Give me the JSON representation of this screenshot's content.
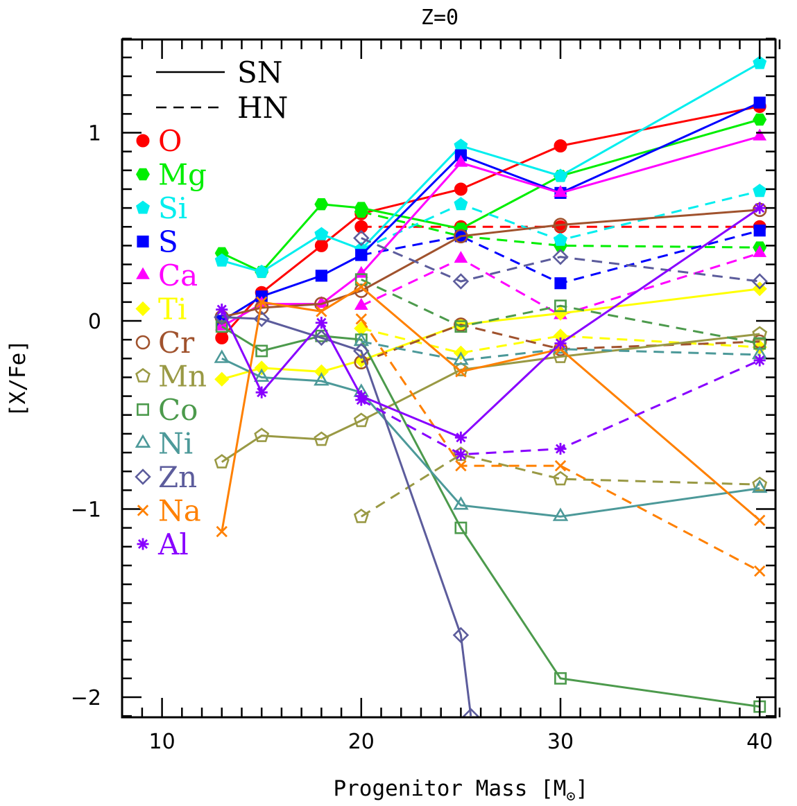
{
  "chart_data": {
    "type": "line",
    "title": "Z=0",
    "xlabel": "Progenitor Mass [M",
    "xlabel_sun": "⊙",
    "ylabel": "[X/Fe]",
    "xlim": [
      8,
      42
    ],
    "ylim": [
      -2.1,
      1.5
    ],
    "xticks": [
      10,
      20,
      30,
      40
    ],
    "xtick_labels": [
      "10",
      "20",
      "30",
      "40"
    ],
    "yticks": [
      1,
      0,
      -1,
      -2
    ],
    "ytick_labels": [
      "1",
      "0",
      "−1",
      "−2"
    ],
    "grid": false,
    "legend_position": "upper-left",
    "style_legend": [
      {
        "label": "SN",
        "dash": "solid"
      },
      {
        "label": "HN",
        "dash": "dashed"
      }
    ],
    "series": [
      {
        "name": "O",
        "color": "#ff0000",
        "marker": "circle-filled",
        "sn": {
          "x": [
            13,
            15,
            18,
            20,
            25,
            30,
            40
          ],
          "y": [
            -0.09,
            0.15,
            0.4,
            0.57,
            0.7,
            0.93,
            1.14
          ]
        },
        "hn": {
          "x": [
            20,
            25,
            30,
            40
          ],
          "y": [
            0.5,
            0.5,
            0.5,
            0.5
          ]
        }
      },
      {
        "name": "Mg",
        "color": "#00ee00",
        "marker": "hexagon-filled",
        "sn": {
          "x": [
            13,
            15,
            18,
            20,
            25,
            30,
            40
          ],
          "y": [
            0.36,
            0.26,
            0.62,
            0.6,
            0.49,
            0.77,
            1.07
          ]
        },
        "hn": {
          "x": [
            20,
            25,
            30,
            40
          ],
          "y": [
            0.58,
            0.45,
            0.4,
            0.39
          ]
        }
      },
      {
        "name": "Si",
        "color": "#00eeee",
        "marker": "pentagon-filled",
        "sn": {
          "x": [
            13,
            15,
            18,
            20,
            25,
            30,
            40
          ],
          "y": [
            0.32,
            0.26,
            0.46,
            0.38,
            0.93,
            0.77,
            1.37
          ]
        },
        "hn": {
          "x": [
            20,
            25,
            30,
            40
          ],
          "y": [
            0.38,
            0.62,
            0.43,
            0.69
          ]
        }
      },
      {
        "name": "S",
        "color": "#0000ff",
        "marker": "square-filled",
        "sn": {
          "x": [
            13,
            15,
            18,
            20,
            25,
            30,
            40
          ],
          "y": [
            0.0,
            0.13,
            0.24,
            0.35,
            0.88,
            0.68,
            1.16
          ]
        },
        "hn": {
          "x": [
            20,
            25,
            30,
            40
          ],
          "y": [
            0.35,
            0.45,
            0.2,
            0.48
          ]
        }
      },
      {
        "name": "Ca",
        "color": "#ff00ff",
        "marker": "triangle-filled",
        "sn": {
          "x": [
            13,
            15,
            18,
            20,
            25,
            30,
            40
          ],
          "y": [
            -0.03,
            0.09,
            0.09,
            0.25,
            0.84,
            0.68,
            0.98
          ]
        },
        "hn": {
          "x": [
            20,
            25,
            30,
            40
          ],
          "y": [
            0.08,
            0.33,
            0.03,
            0.36
          ]
        }
      },
      {
        "name": "Ti",
        "color": "#ffff00",
        "marker": "diamond-filled",
        "sn": {
          "x": [
            13,
            15,
            18,
            20,
            25,
            30,
            40
          ],
          "y": [
            -0.31,
            -0.25,
            -0.27,
            -0.21,
            -0.02,
            0.04,
            0.17
          ]
        },
        "hn": {
          "x": [
            20,
            25,
            30,
            40
          ],
          "y": [
            -0.04,
            -0.17,
            -0.08,
            -0.14
          ]
        }
      },
      {
        "name": "Cr",
        "color": "#a0522d",
        "marker": "circle-open",
        "sn": {
          "x": [
            13,
            15,
            18,
            20,
            25,
            30,
            40
          ],
          "y": [
            0.02,
            0.07,
            0.09,
            0.16,
            0.45,
            0.51,
            0.59
          ]
        },
        "hn": {
          "x": [
            20,
            25,
            30,
            40
          ],
          "y": [
            -0.22,
            -0.02,
            -0.15,
            -0.11
          ]
        }
      },
      {
        "name": "Mn",
        "color": "#999944",
        "marker": "pentagon-open",
        "sn": {
          "x": [
            13,
            15,
            18,
            20,
            25,
            30,
            40
          ],
          "y": [
            -0.75,
            -0.61,
            -0.63,
            -0.53,
            -0.26,
            -0.19,
            -0.07
          ]
        },
        "hn": {
          "x": [
            20,
            25,
            30,
            40
          ],
          "y": [
            -1.04,
            -0.71,
            -0.84,
            -0.87
          ]
        }
      },
      {
        "name": "Co",
        "color": "#4c9a4c",
        "marker": "square-open",
        "sn": {
          "x": [
            13,
            15,
            18,
            20,
            25,
            30,
            40
          ],
          "y": [
            -0.03,
            -0.16,
            -0.08,
            -0.1,
            -1.1,
            -1.9,
            -2.05
          ]
        },
        "hn": {
          "x": [
            20,
            25,
            30,
            40
          ],
          "y": [
            0.22,
            -0.03,
            0.08,
            -0.12
          ]
        }
      },
      {
        "name": "Ni",
        "color": "#4c9999",
        "marker": "triangle-open",
        "sn": {
          "x": [
            13,
            15,
            18,
            20,
            25,
            30,
            40
          ],
          "y": [
            -0.2,
            -0.3,
            -0.32,
            -0.38,
            -0.98,
            -1.04,
            -0.89
          ]
        },
        "hn": {
          "x": [
            20,
            25,
            30,
            40
          ],
          "y": [
            -0.11,
            -0.21,
            -0.15,
            -0.18
          ]
        }
      },
      {
        "name": "Zn",
        "color": "#5c5c9c",
        "marker": "diamond-open",
        "sn": {
          "x": [
            13,
            15,
            18,
            20,
            25,
            25.5
          ],
          "y": [
            0.02,
            0.01,
            -0.09,
            -0.16,
            -1.67,
            -2.1
          ]
        },
        "hn": {
          "x": [
            20,
            25,
            30,
            40
          ],
          "y": [
            0.44,
            0.21,
            0.34,
            0.21
          ]
        }
      },
      {
        "name": "Na",
        "color": "#ff8000",
        "marker": "x",
        "sn": {
          "x": [
            13,
            15,
            18,
            20,
            25,
            30,
            40
          ],
          "y": [
            -1.12,
            0.1,
            0.05,
            0.18,
            -0.27,
            -0.15,
            -1.06
          ]
        },
        "hn": {
          "x": [
            20,
            25,
            30,
            40
          ],
          "y": [
            0.01,
            -0.77,
            -0.77,
            -1.33
          ]
        }
      },
      {
        "name": "Al",
        "color": "#8800ff",
        "marker": "asterisk",
        "sn": {
          "x": [
            13,
            15,
            18,
            20,
            25,
            30,
            40
          ],
          "y": [
            0.06,
            -0.38,
            -0.01,
            -0.4,
            -0.62,
            -0.12,
            0.6
          ]
        },
        "hn": {
          "x": [
            20,
            25,
            30,
            40
          ],
          "y": [
            -0.42,
            -0.71,
            -0.68,
            -0.21
          ]
        }
      }
    ]
  }
}
